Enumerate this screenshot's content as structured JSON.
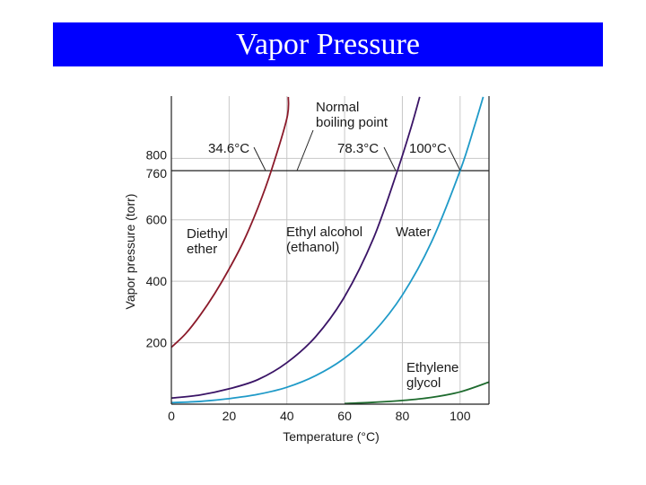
{
  "page": {
    "title": "Vapor Pressure",
    "title_bg": "#0000ff",
    "title_color": "#ffffff"
  },
  "chart_data": {
    "type": "line",
    "xlabel": "Temperature (°C)",
    "ylabel": "Vapor pressure (torr)",
    "xlim": [
      0,
      110
    ],
    "ylim": [
      0,
      1000
    ],
    "x_ticks": [
      0,
      20,
      40,
      60,
      80,
      100
    ],
    "y_ticks": [
      200,
      400,
      600,
      760,
      800
    ],
    "grid": true,
    "reference_line": {
      "y": 760
    },
    "series": [
      {
        "name": "Diethyl ether",
        "label_lines": [
          "Diethyl",
          "ether"
        ],
        "color": "#8b1a2a",
        "x": [
          0,
          5,
          10,
          15,
          20,
          25,
          30,
          34.6,
          40,
          40.5
        ],
        "y": [
          185,
          230,
          290,
          360,
          440,
          530,
          640,
          760,
          930,
          1000
        ]
      },
      {
        "name": "Ethyl alcohol (ethanol)",
        "label_lines": [
          "Ethyl alcohol",
          "(ethanol)"
        ],
        "color": "#3a1466",
        "x": [
          0,
          10,
          20,
          30,
          40,
          50,
          60,
          70,
          78.3,
          83,
          86
        ],
        "y": [
          20,
          30,
          50,
          80,
          135,
          220,
          350,
          540,
          760,
          900,
          1000
        ]
      },
      {
        "name": "Water",
        "label_lines": [
          "Water"
        ],
        "color": "#1f9ac8",
        "x": [
          0,
          10,
          20,
          30,
          40,
          50,
          60,
          70,
          80,
          90,
          100,
          105,
          108
        ],
        "y": [
          5,
          9,
          18,
          32,
          55,
          93,
          150,
          234,
          355,
          526,
          760,
          906,
          1000
        ]
      },
      {
        "name": "Ethylene glycol",
        "label_lines": [
          "Ethylene",
          "glycol"
        ],
        "color": "#1e6b2e",
        "x": [
          60,
          70,
          80,
          90,
          100,
          110
        ],
        "y": [
          2,
          6,
          12,
          22,
          40,
          72
        ]
      }
    ],
    "annotations": {
      "normal_bp_label": [
        "Normal",
        "boiling point"
      ],
      "bp_labels": [
        {
          "text": "34.6°C",
          "x": 34.6
        },
        {
          "text": "78.3°C",
          "x": 78.3
        },
        {
          "text": "100°C",
          "x": 100
        }
      ]
    }
  }
}
